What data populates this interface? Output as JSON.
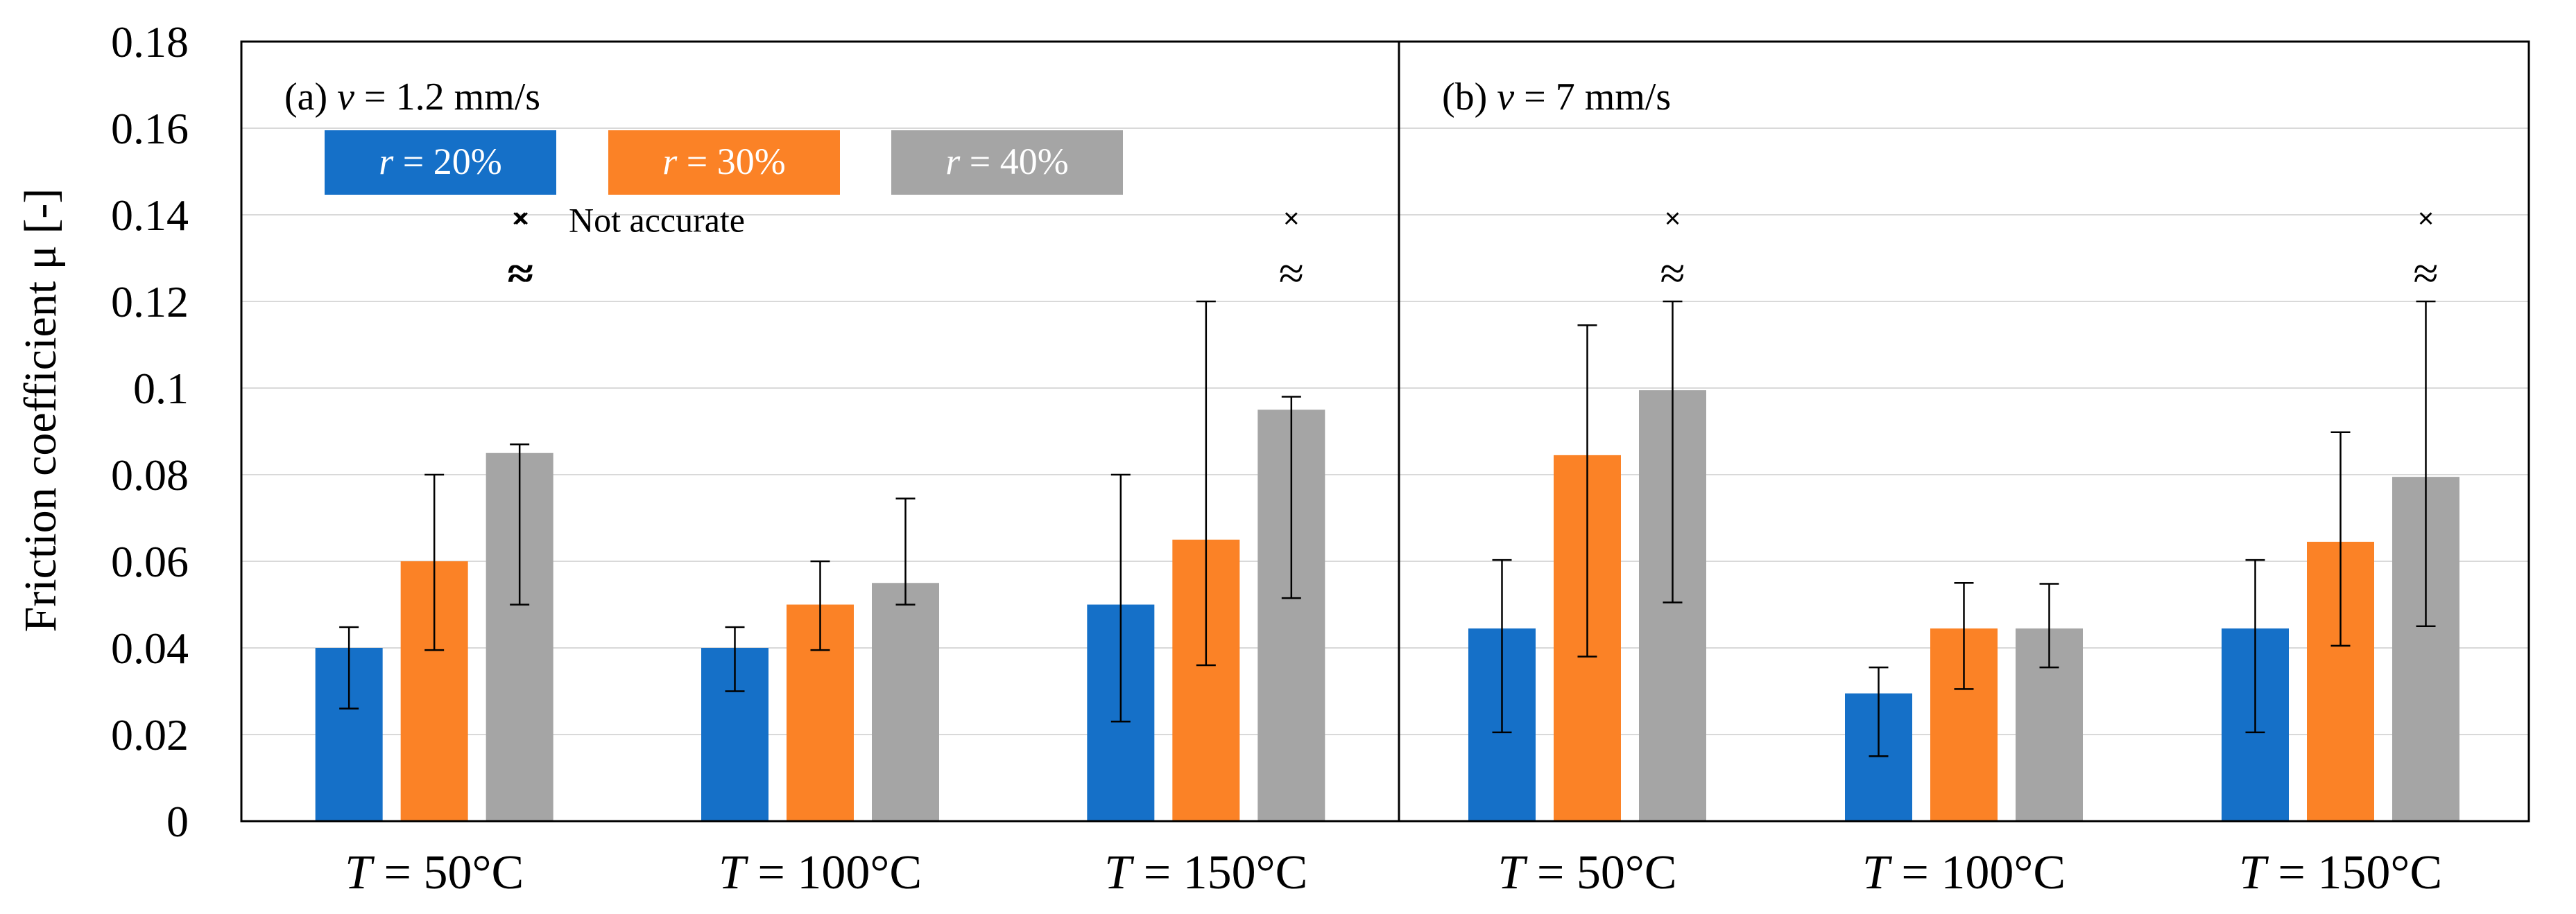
{
  "chart_data": {
    "type": "bar",
    "ylabel": "Friction coefficient μ [-]",
    "ylim": [
      0,
      0.18
    ],
    "yticks": [
      "0",
      "0.02",
      "0.04",
      "0.06",
      "0.08",
      "0.1",
      "0.12",
      "0.14",
      "0.16",
      "0.18"
    ],
    "grid": true,
    "colors": {
      "r20": "#1570c8",
      "r30": "#fb8226",
      "r40": "#a5a5a5"
    },
    "legend": [
      {
        "label": "r = 20%",
        "var": "r",
        "rest": " = 20%"
      },
      {
        "label": "r = 30%",
        "var": "r",
        "rest": " = 30%"
      },
      {
        "label": "r = 40%",
        "var": "r",
        "rest": " = 40%"
      }
    ],
    "marker_note": {
      "symbol": "×",
      "label": "Not accurate"
    },
    "break_symbol": "≈",
    "panels": [
      {
        "title": "(a) v = 1.2 mm/s",
        "title_prefix": "(a) ",
        "title_var": "v",
        "title_rest": " = 1.2 mm/s",
        "groups": [
          {
            "label": "T = 50°C",
            "var": "T",
            "rest": " = 50°C",
            "values": [
              0.04,
              0.06,
              0.085
            ],
            "err_low": [
              0.026,
              0.0395,
              0.05
            ],
            "err_high": [
              0.0448,
              0.08,
              0.087
            ],
            "not_accurate": [
              false,
              false,
              true
            ]
          },
          {
            "label": "T = 100°C",
            "var": "T",
            "rest": " = 100°C",
            "values": [
              0.04,
              0.05,
              0.055
            ],
            "err_low": [
              0.03,
              0.0395,
              0.05
            ],
            "err_high": [
              0.0448,
              0.06,
              0.0745
            ],
            "not_accurate": [
              false,
              false,
              false
            ]
          },
          {
            "label": "T = 150°C",
            "var": "T",
            "rest": " = 150°C",
            "values": [
              0.05,
              0.065,
              0.095
            ],
            "err_low": [
              0.023,
              0.036,
              0.0515
            ],
            "err_high": [
              0.08,
              0.12,
              0.098
            ],
            "not_accurate": [
              false,
              false,
              true
            ]
          }
        ]
      },
      {
        "title": "(b) v = 7 mm/s",
        "title_prefix": "(b) ",
        "title_var": "v",
        "title_rest": " = 7 mm/s",
        "groups": [
          {
            "label": "T = 50°C",
            "var": "T",
            "rest": " = 50°C",
            "values": [
              0.0445,
              0.0845,
              0.0995
            ],
            "err_low": [
              0.0205,
              0.038,
              0.0505
            ],
            "err_high": [
              0.0603,
              0.1145,
              0.12
            ],
            "not_accurate": [
              false,
              false,
              true
            ]
          },
          {
            "label": "T = 100°C",
            "var": "T",
            "rest": " = 100°C",
            "values": [
              0.0295,
              0.0445,
              0.0445
            ],
            "err_low": [
              0.015,
              0.0305,
              0.0355
            ],
            "err_high": [
              0.0355,
              0.055,
              0.0548
            ],
            "not_accurate": [
              false,
              false,
              false
            ]
          },
          {
            "label": "T = 150°C",
            "var": "T",
            "rest": " = 150°C",
            "values": [
              0.0445,
              0.0645,
              0.0795
            ],
            "err_low": [
              0.0205,
              0.0405,
              0.045
            ],
            "err_high": [
              0.0603,
              0.0898,
              0.12
            ],
            "not_accurate": [
              false,
              false,
              true
            ]
          }
        ]
      }
    ]
  }
}
